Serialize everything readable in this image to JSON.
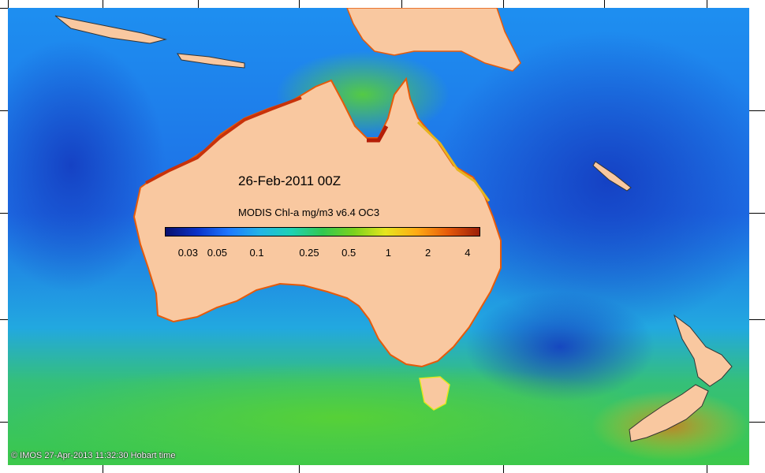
{
  "map": {
    "date_label": "26-Feb-2011 00Z",
    "legend_title": "MODIS Chl-a mg/m3 v6.4 OC3",
    "credit": "© IMOS 27-Apr-2013 11:32:30 Hobart time",
    "colorbar": {
      "scale": "log",
      "range": [
        0.02,
        5
      ],
      "colors": [
        "#08106e",
        "#0a32c8",
        "#1e78ff",
        "#23b4e6",
        "#1ed2b4",
        "#32c850",
        "#7ad21e",
        "#e6e61e",
        "#ffaa14",
        "#e65a0a",
        "#9b1e08"
      ],
      "ticks": [
        {
          "label": "0.03",
          "value": 0.03
        },
        {
          "label": "0.05",
          "value": 0.05
        },
        {
          "label": "0.1",
          "value": 0.1
        },
        {
          "label": "0.25",
          "value": 0.25
        },
        {
          "label": "0.5",
          "value": 0.5
        },
        {
          "label": "1",
          "value": 1
        },
        {
          "label": "2",
          "value": 2
        },
        {
          "label": "4",
          "value": 4
        }
      ]
    },
    "colors": {
      "land": "#f9c8a0",
      "ocean_deep": "#1e4fd8",
      "ocean_mid": "#1e8ff0",
      "ocean_green": "#32c850",
      "coast_high": "#e65a0a"
    }
  }
}
